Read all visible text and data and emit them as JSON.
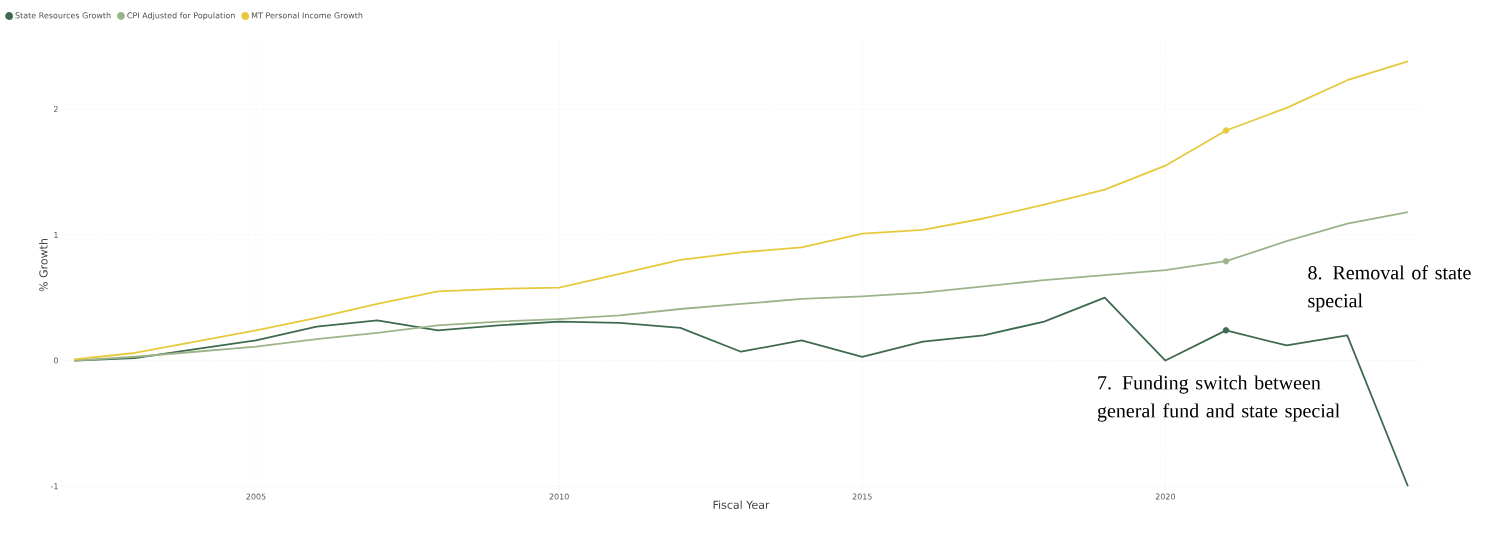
{
  "chart_data": {
    "type": "line",
    "xlabel": "Fiscal Year",
    "ylabel": "% Growth",
    "x": [
      2002,
      2003,
      2004,
      2005,
      2006,
      2007,
      2008,
      2009,
      2010,
      2011,
      2012,
      2013,
      2014,
      2015,
      2016,
      2017,
      2018,
      2019,
      2020,
      2021,
      2022,
      2023,
      2024
    ],
    "series": [
      {
        "name": "State Resources Growth",
        "color": "#3e6b4f",
        "values": [
          0,
          0.02,
          0.09,
          0.16,
          0.27,
          0.32,
          0.24,
          0.28,
          0.31,
          0.3,
          0.26,
          0.07,
          0.16,
          0.03,
          0.15,
          0.2,
          0.31,
          0.5,
          0.0,
          0.24,
          0.12,
          0.2,
          -1.0
        ]
      },
      {
        "name": "CPI Adjusted for Population",
        "color": "#9cb48a",
        "values": [
          0,
          0.03,
          0.07,
          0.11,
          0.17,
          0.22,
          0.28,
          0.31,
          0.33,
          0.36,
          0.41,
          0.45,
          0.49,
          0.51,
          0.54,
          0.59,
          0.64,
          0.68,
          0.72,
          0.79,
          0.95,
          1.09,
          1.18
        ]
      },
      {
        "name": "MT Personal Income Growth",
        "color": "#e6c93c",
        "values": [
          0.01,
          0.06,
          0.15,
          0.24,
          0.34,
          0.45,
          0.55,
          0.57,
          0.58,
          0.69,
          0.8,
          0.86,
          0.9,
          1.01,
          1.04,
          1.13,
          1.24,
          1.36,
          1.55,
          1.83,
          2.01,
          2.23,
          2.38
        ]
      },
      {
        "type": "scatter",
        "color": "#3e6b4f",
        "values": [
          null,
          null,
          null,
          null,
          null,
          null,
          null,
          null,
          null,
          null,
          null,
          null,
          null,
          null,
          null,
          null,
          null,
          null,
          null,
          0.24,
          null,
          null,
          null
        ]
      },
      {
        "type": "scatter",
        "color": "#9cb48a",
        "values": [
          null,
          null,
          null,
          null,
          null,
          null,
          null,
          null,
          null,
          null,
          null,
          null,
          null,
          null,
          null,
          null,
          null,
          null,
          null,
          0.79,
          null,
          null,
          null
        ]
      },
      {
        "type": "scatter",
        "color": "#e6c93c",
        "values": [
          null,
          null,
          null,
          null,
          null,
          null,
          null,
          null,
          null,
          null,
          null,
          null,
          null,
          null,
          null,
          null,
          null,
          null,
          null,
          1.83,
          null,
          null,
          null
        ]
      }
    ],
    "xlim": [
      2001.8,
      2024.2
    ],
    "ylim": [
      -1.03,
      2.55
    ],
    "xticks": [
      2005,
      2010,
      2015,
      2020
    ],
    "yticks": [
      -1,
      0,
      1,
      2
    ],
    "grid": true,
    "legend": "top left",
    "marker": "none",
    "line_style": "solid",
    "annotations": [
      "7. Funding switch between general fund and state special",
      "8. Removal of state special"
    ]
  }
}
